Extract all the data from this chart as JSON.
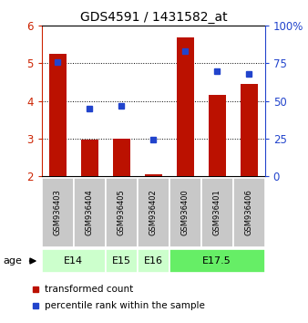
{
  "title": "GDS4591 / 1431582_at",
  "samples": [
    "GSM936403",
    "GSM936404",
    "GSM936405",
    "GSM936402",
    "GSM936400",
    "GSM936401",
    "GSM936406"
  ],
  "red_values": [
    5.25,
    2.97,
    3.0,
    2.05,
    5.7,
    4.15,
    4.45
  ],
  "blue_values": [
    76.0,
    45.0,
    47.0,
    24.0,
    83.0,
    70.0,
    68.0
  ],
  "ylim_left": [
    2,
    6
  ],
  "ylim_right": [
    0,
    100
  ],
  "yticks_left": [
    2,
    3,
    4,
    5,
    6
  ],
  "yticks_right": [
    0,
    25,
    50,
    75,
    100
  ],
  "ytick_labels_right": [
    "0",
    "25",
    "50",
    "75",
    "100%"
  ],
  "groups": [
    {
      "label": "E14",
      "start": 0,
      "end": 1,
      "color": "#ccffcc"
    },
    {
      "label": "E15",
      "start": 2,
      "end": 2,
      "color": "#ccffcc"
    },
    {
      "label": "E16",
      "start": 3,
      "end": 3,
      "color": "#ccffcc"
    },
    {
      "label": "E17.5",
      "start": 4,
      "end": 6,
      "color": "#66ee66"
    }
  ],
  "red_color": "#bb1100",
  "blue_color": "#2244cc",
  "bar_width": 0.55,
  "blue_marker_size": 5,
  "tick_color_left": "#cc2200",
  "tick_color_right": "#2244cc",
  "sample_box_color": "#c8c8c8",
  "legend_red_label": "transformed count",
  "legend_blue_label": "percentile rank within the sample"
}
